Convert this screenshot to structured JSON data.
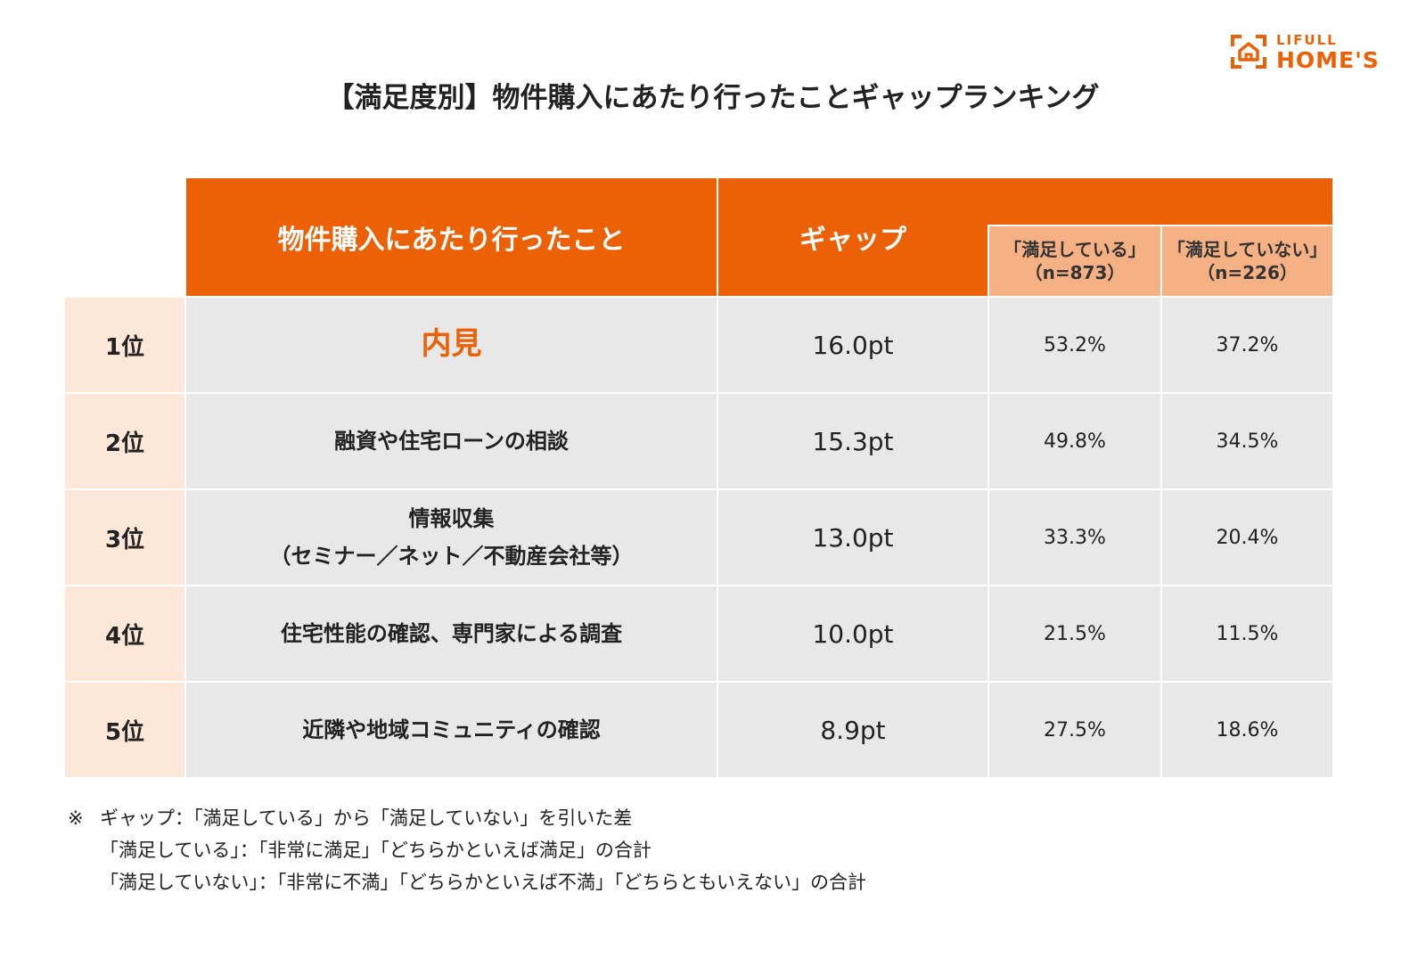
{
  "logo": {
    "top": "LIFULL",
    "bottom": "HOME'S"
  },
  "colors": {
    "accent": "#ec6105",
    "subheader": "#f5b184",
    "rank_bg": "#fde7d8",
    "cell_bg": "#e8e8e8"
  },
  "chart_data": {
    "type": "table",
    "title": "【満足度別】物件購入にあたり行ったことギャップランキング",
    "headers": {
      "item": "物件購入にあたり行ったこと",
      "gap": "ギャップ",
      "satisfied": {
        "label": "「満足している」",
        "n": "（n=873）"
      },
      "unsatisfied": {
        "label": "「満足していない」",
        "n": "（n=226）"
      }
    },
    "rows": [
      {
        "rank": "1位",
        "item": [
          "内見"
        ],
        "gap": "16.0pt",
        "gap_value": 16.0,
        "satisfied": "53.2%",
        "unsatisfied": "37.2%"
      },
      {
        "rank": "2位",
        "item": [
          "融資や住宅ローンの相談"
        ],
        "gap": "15.3pt",
        "gap_value": 15.3,
        "satisfied": "49.8%",
        "unsatisfied": "34.5%"
      },
      {
        "rank": "3位",
        "item": [
          "情報収集",
          "（セミナー／ネット／不動産会社等）"
        ],
        "gap": "13.0pt",
        "gap_value": 13.0,
        "satisfied": "33.3%",
        "unsatisfied": "20.4%"
      },
      {
        "rank": "4位",
        "item": [
          "住宅性能の確認、専門家による調査"
        ],
        "gap": "10.0pt",
        "gap_value": 10.0,
        "satisfied": "21.5%",
        "unsatisfied": "11.5%"
      },
      {
        "rank": "5位",
        "item": [
          "近隣や地域コミュニティの確認"
        ],
        "gap": "8.9pt",
        "gap_value": 8.9,
        "satisfied": "27.5%",
        "unsatisfied": "18.6%"
      }
    ]
  },
  "notes": {
    "mark": "※",
    "lines": [
      "ギャップ：「満足している」から「満足していない」を引いた差",
      "「満足している」：「非常に満足」「どちらかといえば満足」の合計",
      "「満足していない」：「非常に不満」「どちらかといえば不満」「どちらともいえない」の合計"
    ]
  }
}
